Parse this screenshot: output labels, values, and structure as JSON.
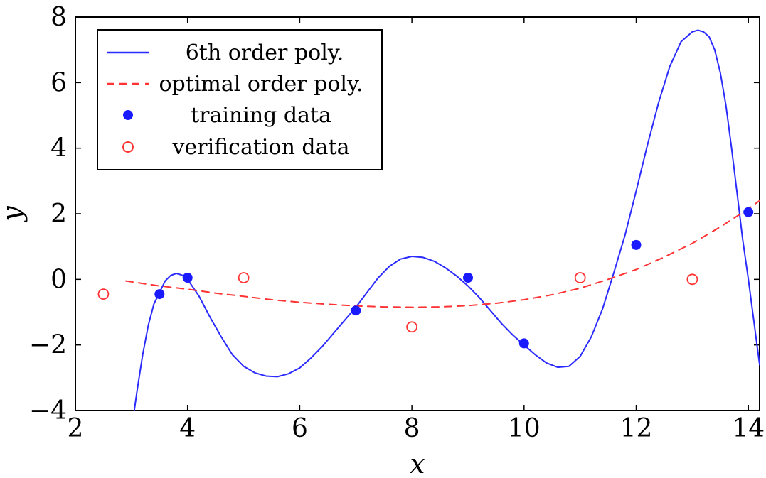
{
  "chart_data": {
    "type": "line",
    "title": "",
    "xlabel": "x",
    "ylabel": "y",
    "xlim": [
      2,
      14.2
    ],
    "ylim": [
      -4,
      8
    ],
    "x_ticks": [
      2,
      4,
      6,
      8,
      10,
      12,
      14
    ],
    "y_ticks": [
      -4,
      -2,
      0,
      2,
      4,
      6,
      8
    ],
    "grid": false,
    "legend_position": "top-left",
    "series": [
      {
        "name": "6th order poly.",
        "kind": "line",
        "style": "solid",
        "color": "#2b2bff",
        "x": [
          3.05,
          3.1,
          3.2,
          3.3,
          3.4,
          3.5,
          3.6,
          3.7,
          3.8,
          3.9,
          4.0,
          4.2,
          4.4,
          4.6,
          4.8,
          5.0,
          5.2,
          5.4,
          5.6,
          5.8,
          6.0,
          6.2,
          6.4,
          6.6,
          6.8,
          7.0,
          7.2,
          7.4,
          7.6,
          7.8,
          8.0,
          8.2,
          8.4,
          8.6,
          8.8,
          9.0,
          9.2,
          9.4,
          9.6,
          9.8,
          10.0,
          10.2,
          10.4,
          10.6,
          10.8,
          11.0,
          11.2,
          11.4,
          11.6,
          11.8,
          12.0,
          12.2,
          12.4,
          12.6,
          12.8,
          13.0,
          13.1,
          13.2,
          13.3,
          13.4,
          13.5,
          13.6,
          13.7,
          13.8,
          13.9,
          14.0,
          14.1,
          14.2
        ],
        "y": [
          -4.0,
          -3.4,
          -2.3,
          -1.4,
          -0.75,
          -0.4,
          -0.05,
          0.12,
          0.18,
          0.13,
          0.0,
          -0.5,
          -1.15,
          -1.75,
          -2.3,
          -2.65,
          -2.85,
          -2.95,
          -2.97,
          -2.88,
          -2.7,
          -2.4,
          -2.05,
          -1.65,
          -1.25,
          -0.85,
          -0.4,
          0.05,
          0.4,
          0.62,
          0.7,
          0.67,
          0.55,
          0.35,
          0.1,
          -0.2,
          -0.55,
          -0.95,
          -1.35,
          -1.7,
          -2.0,
          -2.3,
          -2.55,
          -2.68,
          -2.65,
          -2.35,
          -1.75,
          -0.9,
          0.2,
          1.35,
          2.7,
          4.1,
          5.4,
          6.5,
          7.25,
          7.55,
          7.6,
          7.55,
          7.4,
          7.0,
          6.3,
          5.3,
          4.0,
          2.6,
          1.2,
          0.0,
          -1.3,
          -2.6
        ]
      },
      {
        "name": "optimal order poly.",
        "kind": "line",
        "style": "dashed",
        "color": "#ff3333",
        "x": [
          2.9,
          3.5,
          4.0,
          4.5,
          5.0,
          5.5,
          6.0,
          6.5,
          7.0,
          7.5,
          8.0,
          8.5,
          9.0,
          9.5,
          10.0,
          10.5,
          11.0,
          11.5,
          12.0,
          12.5,
          13.0,
          13.5,
          14.0,
          14.2
        ],
        "y": [
          -0.05,
          -0.2,
          -0.3,
          -0.42,
          -0.52,
          -0.62,
          -0.7,
          -0.76,
          -0.81,
          -0.84,
          -0.85,
          -0.84,
          -0.8,
          -0.73,
          -0.62,
          -0.47,
          -0.27,
          0.0,
          0.3,
          0.68,
          1.1,
          1.6,
          2.15,
          2.4
        ]
      },
      {
        "name": "training data",
        "kind": "scatter",
        "marker": "filled-circle",
        "color": "#1a1aff",
        "x": [
          3.5,
          4.0,
          7.0,
          9.0,
          10.0,
          12.0,
          14.0
        ],
        "y": [
          -0.45,
          0.05,
          -0.95,
          0.05,
          -1.95,
          1.05,
          2.05
        ]
      },
      {
        "name": "verification data",
        "kind": "scatter",
        "marker": "open-circle",
        "color": "#ff3333",
        "x": [
          2.5,
          5.0,
          8.0,
          11.0,
          13.0
        ],
        "y": [
          -0.45,
          0.05,
          -1.45,
          0.05,
          0.0
        ]
      }
    ]
  }
}
